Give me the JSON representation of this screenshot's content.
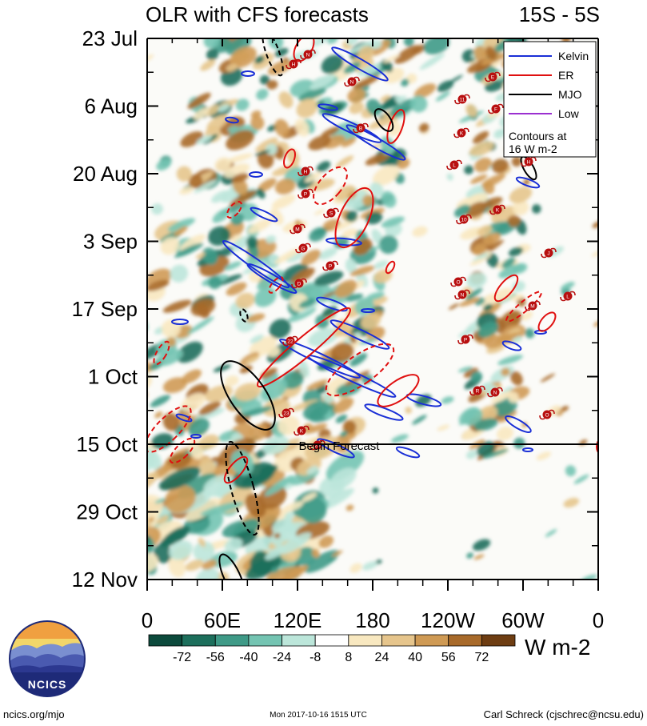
{
  "chart_data": {
    "type": "heatmap",
    "title": "OLR with CFS forecasts",
    "region": "15S - 5S",
    "y_ticks": [
      "23 Jul",
      "6 Aug",
      "20 Aug",
      "3 Sep",
      "17 Sep",
      "1 Oct",
      "15 Oct",
      "29 Oct",
      "12 Nov"
    ],
    "x_ticks": [
      "0",
      "60E",
      "120E",
      "180",
      "120W",
      "60W",
      "0"
    ],
    "xlim": [
      0,
      360
    ],
    "colorbar": {
      "labels": [
        "-72",
        "-56",
        "-40",
        "-24",
        "-8",
        "8",
        "24",
        "40",
        "56",
        "72"
      ],
      "unit": "W m-2",
      "colors": [
        "#0c4a3c",
        "#1d6f5c",
        "#3f9a87",
        "#74c4b2",
        "#bce6da",
        "#ffffff",
        "#f8e8c0",
        "#e6c58c",
        "#cf9a54",
        "#a86a2a",
        "#6e3d12"
      ]
    },
    "legend": {
      "placement": "top-right",
      "entries": [
        {
          "label": "Kelvin",
          "color": "#1a2fd6"
        },
        {
          "label": "ER",
          "color": "#e01010"
        },
        {
          "label": "MJO",
          "color": "#000000"
        },
        {
          "label": "Low",
          "color": "#9b30d0"
        }
      ],
      "note_line1": "Contours at",
      "note_line2": "16 W m-2"
    },
    "forecast_label": "Begin Forecast",
    "forecast_start": "15 Oct",
    "storm_labels": [
      "N",
      "H",
      "N",
      "B",
      "H",
      "P",
      "S",
      "M",
      "G",
      "P",
      "D",
      "22",
      "23",
      "K",
      "25",
      "E",
      "11",
      "F",
      "K",
      "L",
      "10",
      "K",
      "J",
      "O",
      "N",
      "M",
      "L",
      "P",
      "R",
      "N",
      "O",
      "H"
    ]
  },
  "footer": {
    "left": "ncics.org/mjo",
    "center": "Mon 2017-10-16 1515 UTC",
    "right": "Carl Schreck (cjschrec@ncsu.edu)"
  },
  "logo": {
    "text": "NCICS"
  }
}
